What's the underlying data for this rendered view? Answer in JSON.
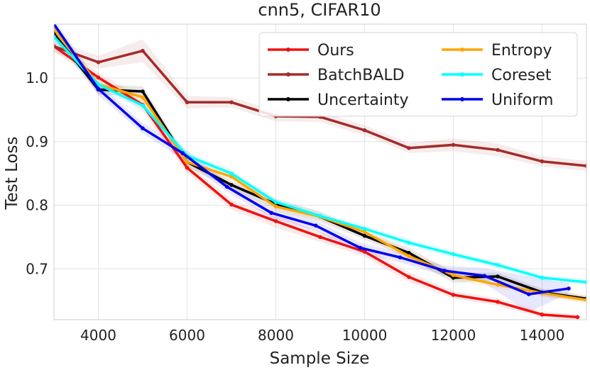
{
  "chart_data": {
    "type": "line",
    "title": "cnn5, CIFAR10",
    "xlabel": "Sample Size",
    "ylabel": "Test Loss",
    "xlim": [
      3000,
      15000
    ],
    "ylim": [
      0.62,
      1.085
    ],
    "xticks": [
      4000,
      6000,
      8000,
      10000,
      12000,
      14000
    ],
    "yticks": [
      0.7,
      0.8,
      0.9,
      1.0
    ],
    "xtick_labels": [
      "4000",
      "6000",
      "8000",
      "10000",
      "12000",
      "14000"
    ],
    "ytick_labels": [
      "0.7",
      "0.8",
      "0.9",
      "1.0"
    ],
    "grid": true,
    "legend_position": "top-right",
    "legend_columns": 2,
    "series": [
      {
        "name": "Ours",
        "color": "#ee1111",
        "x": [
          3000,
          4000,
          5000,
          6000,
          7000,
          8000,
          9000,
          10000,
          11000,
          12000,
          13000,
          14000,
          14800
        ],
        "y": [
          1.05,
          1.001,
          0.958,
          0.859,
          0.801,
          0.775,
          0.75,
          0.727,
          0.687,
          0.659,
          0.648,
          0.628,
          0.624
        ],
        "band": [
          0.008,
          0.008,
          0.01,
          0.008,
          0.008,
          0.01,
          0.008,
          0.008,
          0.008,
          0.006,
          0.006,
          0.005,
          0.005
        ]
      },
      {
        "name": "BatchBALD",
        "color": "#a52a2a",
        "x": [
          3000,
          4000,
          5000,
          6000,
          7000,
          8000,
          9000,
          10000,
          11000,
          12000,
          13000,
          14000,
          15000
        ],
        "y": [
          1.05,
          1.025,
          1.043,
          0.962,
          0.962,
          0.94,
          0.939,
          0.918,
          0.89,
          0.895,
          0.887,
          0.869,
          0.862
        ],
        "band": [
          0.01,
          0.01,
          0.018,
          0.01,
          0.008,
          0.008,
          0.008,
          0.008,
          0.008,
          0.01,
          0.01,
          0.008,
          0.008
        ]
      },
      {
        "name": "Uncertainty",
        "color": "#000000",
        "x": [
          3000,
          4000,
          5000,
          6000,
          7000,
          8000,
          9000,
          10000,
          11000,
          12000,
          13000,
          14000,
          15000
        ],
        "y": [
          1.07,
          0.982,
          0.979,
          0.868,
          0.832,
          0.802,
          0.782,
          0.752,
          0.725,
          0.686,
          0.688,
          0.663,
          0.653
        ],
        "band": [
          0.008,
          0.008,
          0.008,
          0.008,
          0.006,
          0.008,
          0.008,
          0.006,
          0.008,
          0.008,
          0.006,
          0.006,
          0.005
        ]
      },
      {
        "name": "Entropy",
        "color": "#ffa500",
        "x": [
          3000,
          4000,
          5000,
          6000,
          7000,
          8000,
          9000,
          10000,
          11000,
          12000,
          13000,
          14000,
          15000
        ],
        "y": [
          1.077,
          0.99,
          0.97,
          0.868,
          0.845,
          0.798,
          0.782,
          0.758,
          0.72,
          0.69,
          0.675,
          0.662,
          0.651
        ],
        "band": [
          0.008,
          0.008,
          0.008,
          0.008,
          0.006,
          0.008,
          0.006,
          0.006,
          0.008,
          0.008,
          0.006,
          0.006,
          0.006
        ]
      },
      {
        "name": "Coreset",
        "color": "#00ffff",
        "x": [
          3000,
          4000,
          5000,
          6000,
          7000,
          8000,
          9000,
          10000,
          11000,
          12000,
          13000,
          14000,
          15000
        ],
        "y": [
          1.065,
          0.99,
          0.957,
          0.878,
          0.85,
          0.805,
          0.783,
          0.763,
          0.741,
          0.723,
          0.706,
          0.686,
          0.679
        ],
        "band": [
          0.008,
          0.008,
          0.006,
          0.006,
          0.006,
          0.006,
          0.006,
          0.006,
          0.006,
          0.006,
          0.005,
          0.005,
          0.005
        ]
      },
      {
        "name": "Uniform",
        "color": "#0000ee",
        "x": [
          3000,
          4000,
          5000,
          5900,
          6900,
          7900,
          8900,
          9900,
          10800,
          11800,
          12700,
          13700,
          14600
        ],
        "y": [
          1.085,
          0.983,
          0.921,
          0.882,
          0.829,
          0.788,
          0.768,
          0.733,
          0.718,
          0.697,
          0.689,
          0.66,
          0.669
        ],
        "band": [
          0.008,
          0.01,
          0.008,
          0.01,
          0.008,
          0.008,
          0.008,
          0.008,
          0.008,
          0.008,
          0.012,
          0.028,
          0.008
        ]
      }
    ]
  }
}
